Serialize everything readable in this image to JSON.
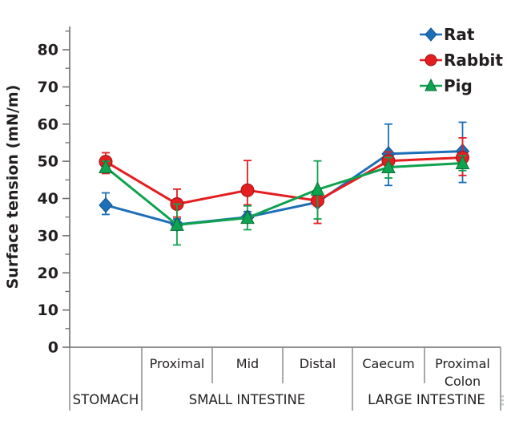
{
  "figure": {
    "background": "#ffffff",
    "axis_color": "#6d6e71",
    "divider_color": "#808285",
    "text_color": "#231f20"
  },
  "chart_data": {
    "type": "line",
    "title": "",
    "xlabel": "",
    "ylabel": "Surface tension (mN/m)",
    "ylim": [
      0,
      86
    ],
    "y_ticks": [
      0,
      10,
      20,
      30,
      40,
      50,
      60,
      70,
      80
    ],
    "y_minor_tick_step": 5,
    "grid": false,
    "legend_position": "top-right",
    "categories": [
      "",
      "Proximal",
      "Mid",
      "Distal",
      "Caecum",
      "Proximal Colon"
    ],
    "region_labels": [
      {
        "label": "STOMACH",
        "start": 0,
        "end": 1
      },
      {
        "label": "SMALL INTESTINE",
        "start": 1,
        "end": 4
      },
      {
        "label": "LARGE INTESTINE",
        "start": 4,
        "end": 6
      }
    ],
    "series": [
      {
        "name": "Rat",
        "marker": "diamond",
        "color": "#1c6fb8",
        "edge_color": "#14568c",
        "values": [
          38.2,
          33.0,
          35.0,
          39.0,
          52.0,
          52.7
        ],
        "err_lo": [
          35.7,
          31.5,
          33.5,
          38.2,
          43.5,
          44.3
        ],
        "err_hi": [
          41.5,
          34.5,
          36.5,
          40.0,
          60.0,
          60.5
        ]
      },
      {
        "name": "Rabbit",
        "marker": "circle",
        "color": "#e41e20",
        "edge_color": "#9e1315",
        "values": [
          49.9,
          38.5,
          42.2,
          39.4,
          50.1,
          51.0
        ],
        "err_lo": [
          46.7,
          35.0,
          38.3,
          33.3,
          47.5,
          46.2
        ],
        "err_hi": [
          52.3,
          42.5,
          50.2,
          42.0,
          52.5,
          56.3
        ]
      },
      {
        "name": "Pig",
        "marker": "triangle",
        "color": "#0fa24f",
        "edge_color": "#0a7038",
        "values": [
          48.4,
          32.9,
          34.8,
          42.4,
          48.4,
          49.5
        ],
        "err_lo": [
          47.0,
          27.5,
          31.6,
          34.5,
          45.5,
          47.5
        ],
        "err_hi": [
          50.0,
          38.5,
          38.0,
          50.1,
          51.0,
          51.5
        ]
      }
    ]
  }
}
